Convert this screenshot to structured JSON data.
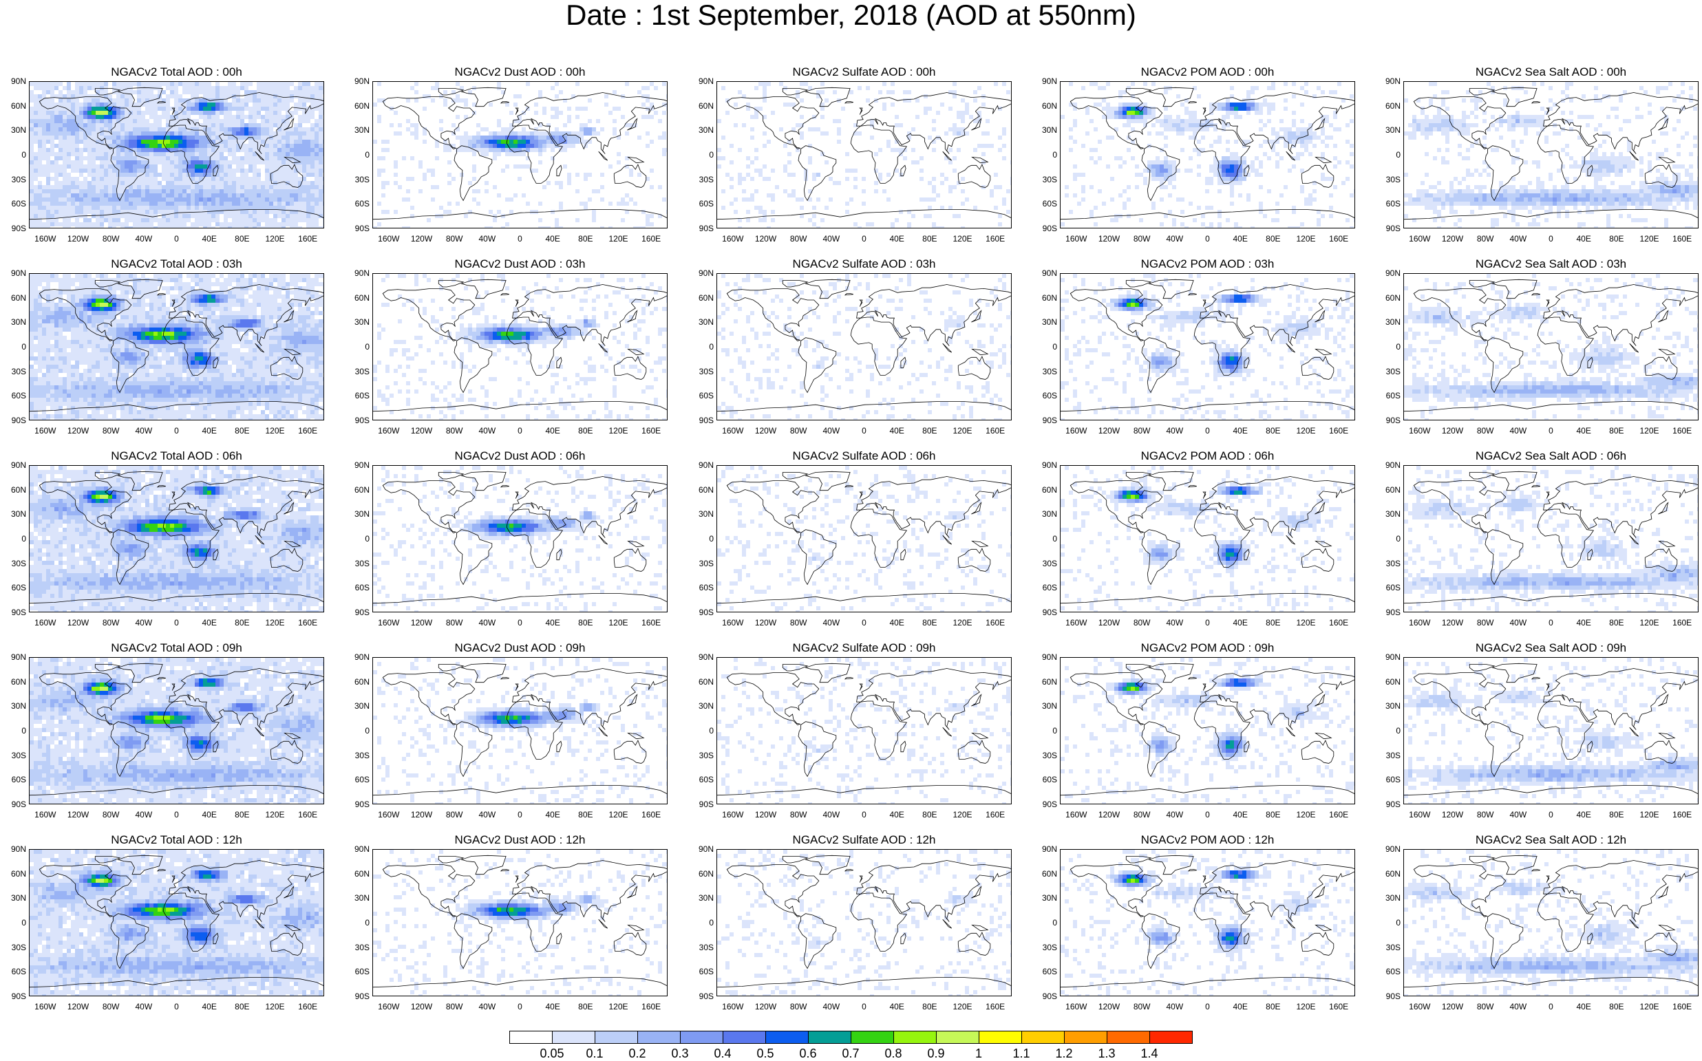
{
  "title": "Date : 1st September, 2018 (AOD at 550nm)",
  "lat_ticks": [
    "90N",
    "60N",
    "30N",
    "0",
    "30S",
    "60S",
    "90S"
  ],
  "lon_ticks": [
    "160W",
    "120W",
    "80W",
    "40W",
    "0",
    "40E",
    "80E",
    "120E",
    "160E"
  ],
  "rows": [
    [
      "NGACv2 Total AOD : 00h",
      "NGACv2 Dust AOD : 00h",
      "NGACv2 Sulfate AOD : 00h",
      "NGACv2 POM AOD : 00h",
      "NGACv2 Sea Salt AOD : 00h"
    ],
    [
      "NGACv2 Total AOD : 03h",
      "NGACv2 Dust AOD : 03h",
      "NGACv2 Sulfate AOD : 03h",
      "NGACv2 POM AOD : 03h",
      "NGACv2 Sea Salt AOD : 03h"
    ],
    [
      "NGACv2 Total AOD : 06h",
      "NGACv2 Dust AOD : 06h",
      "NGACv2 Sulfate AOD : 06h",
      "NGACv2 POM AOD : 06h",
      "NGACv2 Sea Salt AOD : 06h"
    ],
    [
      "NGACv2 Total AOD : 09h",
      "NGACv2 Dust AOD : 09h",
      "NGACv2 Sulfate AOD : 09h",
      "NGACv2 POM AOD : 09h",
      "NGACv2 Sea Salt  AOD : 09h"
    ],
    [
      "NGACv2 Total AOD : 12h",
      "NGACv2 Dust AOD : 12h",
      "NGACv2 Sulfate AOD : 12h",
      "NGACv2 POM  AOD : 12h",
      "NGACv2 Sea Salt AOD : 12h"
    ]
  ],
  "colorbar": {
    "labels": [
      "0.05",
      "0.1",
      "0.2",
      "0.3",
      "0.4",
      "0.5",
      "0.6",
      "0.7",
      "0.8",
      "0.9",
      "1",
      "1.1",
      "1.2",
      "1.3",
      "1.4"
    ],
    "colors": [
      "#ffffff",
      "#dbe4fb",
      "#bccff8",
      "#99b3f5",
      "#7f9bf2",
      "#5a78ee",
      "#0c5df0",
      "#049e96",
      "#34d312",
      "#96f50e",
      "#c6f858",
      "#fffd00",
      "#ffce00",
      "#ff9e00",
      "#ff6a00",
      "#ff2800"
    ]
  }
}
